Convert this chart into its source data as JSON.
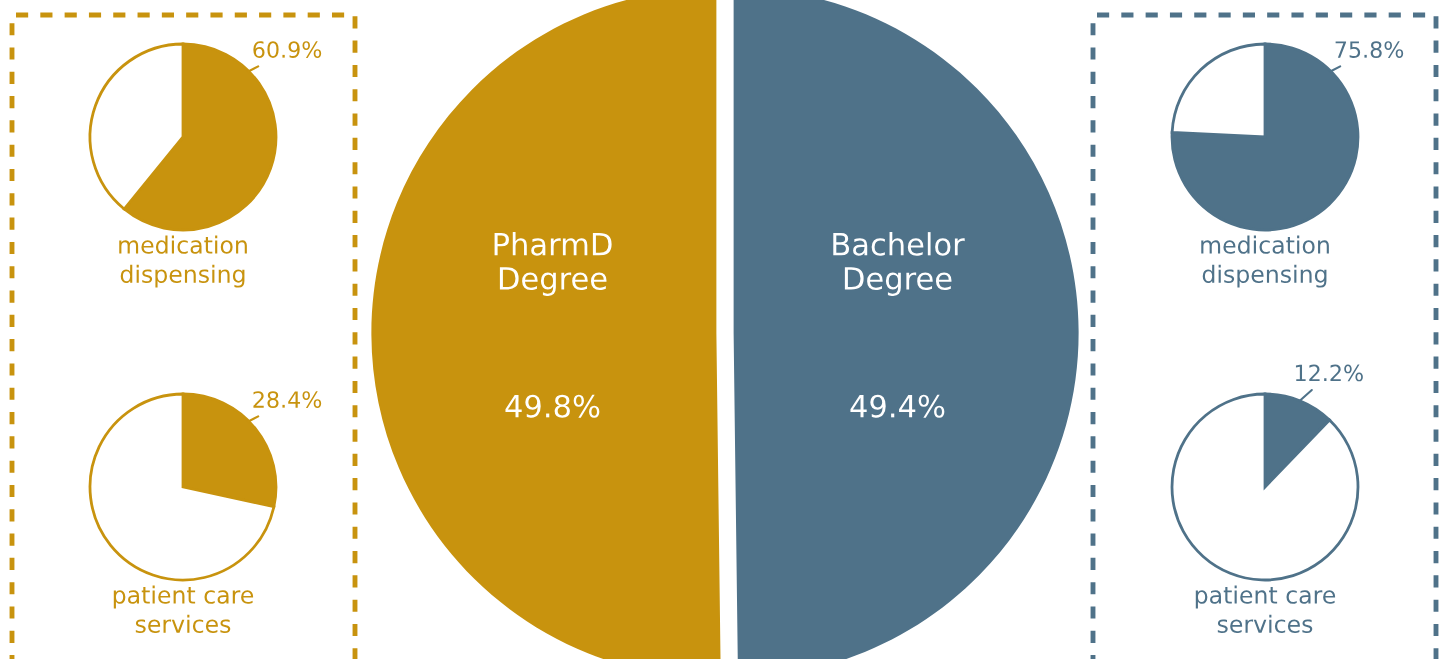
{
  "chart_data": [
    {
      "type": "pie",
      "title": "medication\ndispensing",
      "categories": [
        null,
        null
      ],
      "values": [
        60.9,
        39.1
      ],
      "colors": [
        "#c8930e",
        "#ffffff"
      ],
      "value_labels": [
        "60.9%",
        null
      ]
    },
    {
      "type": "pie",
      "title": "patient care\nservices",
      "categories": [
        null,
        null
      ],
      "values": [
        28.4,
        71.6
      ],
      "colors": [
        "#c8930e",
        "#ffffff"
      ],
      "value_labels": [
        "28.4%",
        null
      ]
    },
    {
      "type": "pie",
      "categories": [
        "PharmD\nDegree",
        "Bachelor\nDegree"
      ],
      "values": [
        49.8,
        49.4
      ],
      "colors": [
        "#c8930e",
        "#4f7289"
      ],
      "value_labels": [
        "49.8%",
        "49.4%"
      ]
    },
    {
      "type": "pie",
      "title": "medication\ndispensing",
      "categories": [
        null,
        null
      ],
      "values": [
        75.8,
        24.2
      ],
      "colors": [
        "#4f7289",
        "#ffffff"
      ],
      "value_labels": [
        "75.8%",
        null
      ]
    },
    {
      "type": "pie",
      "title": "patient care\nservices",
      "categories": [
        null,
        null
      ],
      "values": [
        12.2,
        87.8
      ],
      "colors": [
        "#4f7289",
        "#ffffff"
      ],
      "value_labels": [
        "12.2%",
        null
      ]
    }
  ]
}
